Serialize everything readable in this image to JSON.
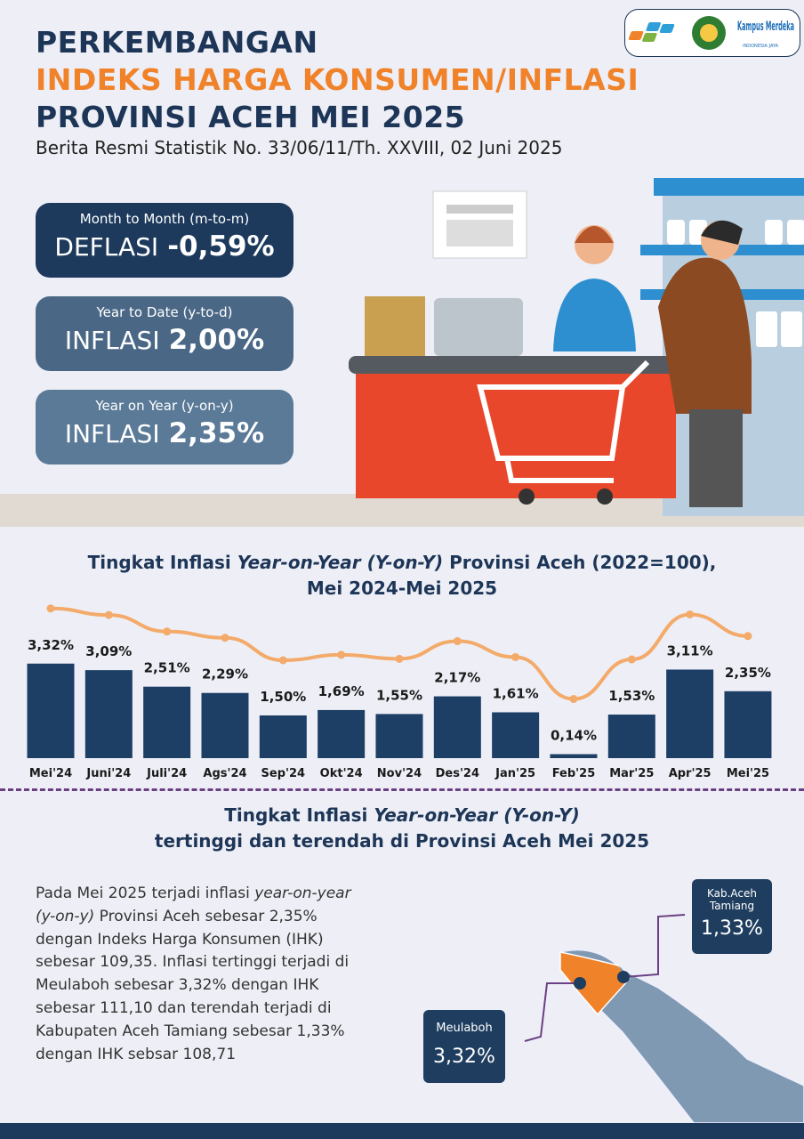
{
  "header": {
    "line1": "PERKEMBANGAN",
    "line2": "INDEKS HARGA KONSUMEN/INFLASI",
    "line3": "PROVINSI ACEH MEI 2025",
    "subtitle": "Berita Resmi Statistik No. 33/06/11/Th. XXVIII, 02 Juni 2025",
    "logo_text": "Kampus Merdeka",
    "logo_sub": "INDONESIA JAYA"
  },
  "cards": [
    {
      "period": "Month to Month (m-to-m)",
      "label": "DEFLASI",
      "value": "-0,59%"
    },
    {
      "period": "Year to Date (y-to-d)",
      "label": "INFLASI",
      "value": "2,00%"
    },
    {
      "period": "Year on Year (y-on-y)",
      "label": "INFLASI",
      "value": "2,35%"
    }
  ],
  "chart_data": {
    "type": "bar",
    "title": [
      "Tingkat Inflasi ",
      "Year-on-Year (Y-on-Y)",
      " Provinsi Aceh (2022=100),"
    ],
    "subtitle": "Mei 2024-Mei 2025",
    "categories": [
      "Mei'24",
      "Juni'24",
      "Juli'24",
      "Ags'24",
      "Sep'24",
      "Okt'24",
      "Nov'24",
      "Des'24",
      "Jan'25",
      "Feb'25",
      "Mar'25",
      "Apr'25",
      "Mei'25"
    ],
    "values": [
      3.32,
      3.09,
      2.51,
      2.29,
      1.5,
      1.69,
      1.55,
      2.17,
      1.61,
      0.14,
      1.53,
      3.11,
      2.35
    ],
    "value_labels": [
      "3,32%",
      "3,09%",
      "2,51%",
      "2,29%",
      "1,50%",
      "1,69%",
      "1,55%",
      "2,17%",
      "1,61%",
      "0,14%",
      "1,53%",
      "3,11%",
      "2,35%"
    ],
    "color": "#1d3f66",
    "line_color": "#f3aa6a"
  },
  "section2": {
    "title1": [
      "Tingkat Inflasi ",
      "Year-on-Year (Y-on-Y)"
    ],
    "title2": "tertinggi dan terendah di Provinsi Aceh Mei 2025",
    "paragraph": [
      "Pada Mei 2025 terjadi inflasi ",
      "year-on-year (y-on-y)",
      " Provinsi Aceh sebesar 2,35% dengan Indeks Harga Konsumen (IHK) sebesar 109,35. Inflasi tertinggi terjadi di Meulaboh sebesar 3,32% dengan IHK sebesar 111,10 dan terendah terjadi di Kabupaten Aceh Tamiang sebesar 1,33% dengan IHK sebsar 108,71"
    ],
    "highest": {
      "name": "Meulaboh",
      "value": "3,32%"
    },
    "lowest": {
      "name": "Kab.Aceh Tamiang",
      "value": "1,33%"
    }
  }
}
